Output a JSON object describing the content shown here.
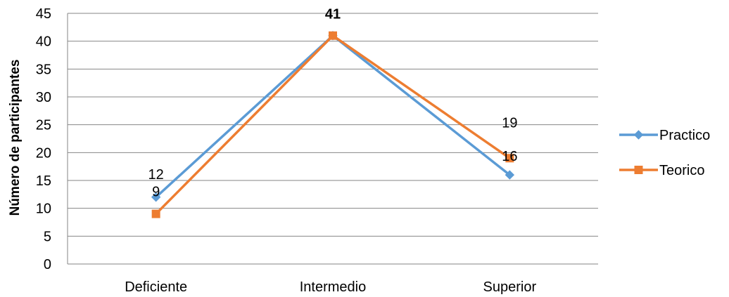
{
  "chart_data": {
    "type": "line",
    "title": "",
    "xlabel": "",
    "ylabel": "Número de participantes",
    "categories": [
      "Deficiente",
      "Intermedio",
      "Superior"
    ],
    "ylim": [
      0,
      45
    ],
    "ytick_step": 5,
    "y_ticks": [
      "0",
      "5",
      "10",
      "15",
      "20",
      "25",
      "30",
      "35",
      "40",
      "45"
    ],
    "grid": true,
    "legend_position": "right",
    "series": [
      {
        "name": "Practico",
        "values": [
          12,
          41,
          16
        ],
        "color": "#5B9BD5",
        "marker": "diamond",
        "data_labels": [
          "12",
          "",
          "16"
        ]
      },
      {
        "name": "Teorico",
        "values": [
          9,
          41,
          19
        ],
        "color": "#ED7D31",
        "marker": "square",
        "data_labels": [
          "9",
          "41",
          "19"
        ]
      }
    ]
  }
}
